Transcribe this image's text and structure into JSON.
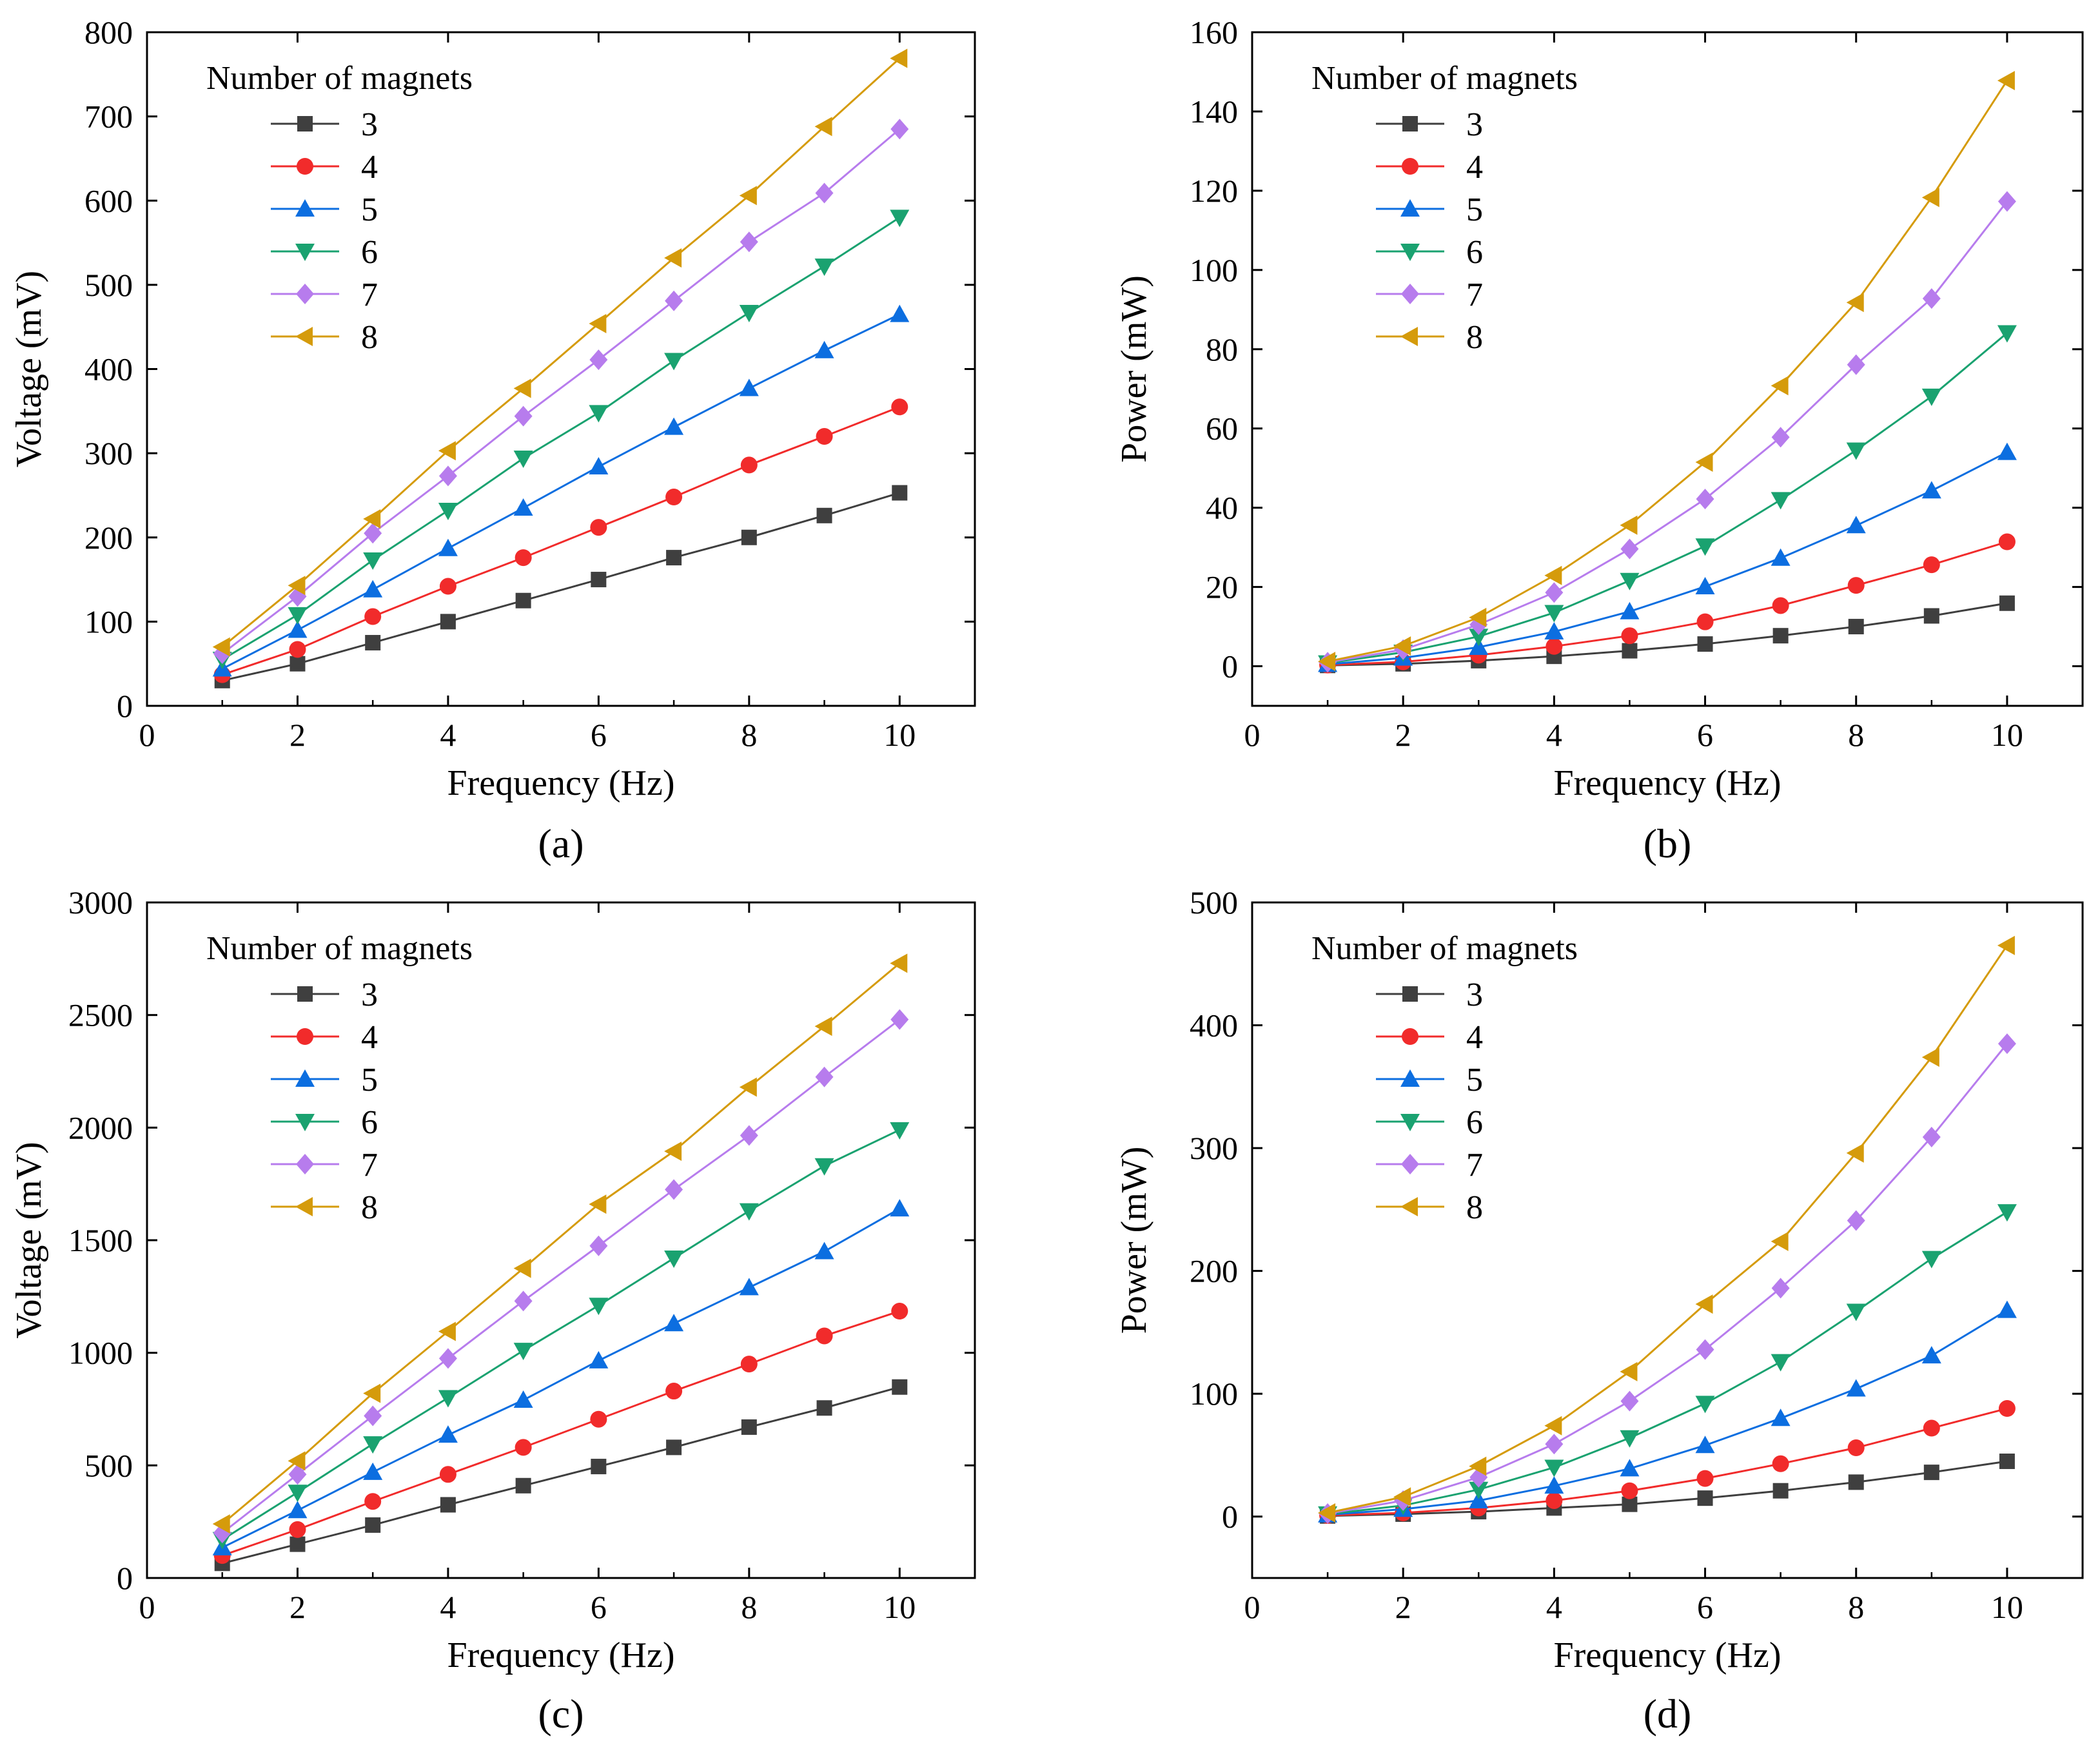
{
  "chart_data": [
    {
      "type": "line",
      "caption": "(a)",
      "xlabel": "Frequency (Hz)",
      "ylabel": "Voltage (mV)",
      "xlim": [
        0,
        11
      ],
      "ylim": [
        0,
        800
      ],
      "xticks": [
        0,
        2,
        4,
        6,
        8,
        10
      ],
      "yticks": [
        0,
        100,
        200,
        300,
        400,
        500,
        600,
        700,
        800
      ],
      "legend_title": "Number of magnets",
      "legend_position": "top-left",
      "x": [
        1,
        2,
        3,
        4,
        5,
        6,
        7,
        8,
        9,
        10
      ],
      "series": [
        {
          "name": "3",
          "color": "#3f3f3f",
          "marker": "square",
          "values": [
            30,
            50,
            75,
            100,
            125,
            150,
            176,
            200,
            226,
            253
          ]
        },
        {
          "name": "4",
          "color": "#f12b2b",
          "marker": "circle",
          "values": [
            37,
            67,
            106,
            142,
            176,
            212,
            248,
            286,
            320,
            355
          ]
        },
        {
          "name": "5",
          "color": "#0c6ee0",
          "marker": "triangle-up",
          "values": [
            44,
            90,
            138,
            187,
            235,
            284,
            331,
            377,
            422,
            465
          ]
        },
        {
          "name": "6",
          "color": "#1aa270",
          "marker": "triangle-down",
          "values": [
            55,
            108,
            173,
            232,
            294,
            348,
            410,
            467,
            522,
            580
          ]
        },
        {
          "name": "7",
          "color": "#b77ced",
          "marker": "diamond",
          "values": [
            62,
            130,
            205,
            273,
            344,
            411,
            481,
            551,
            609,
            685
          ]
        },
        {
          "name": "8",
          "color": "#d59b0b",
          "marker": "triangle-left",
          "values": [
            70,
            143,
            222,
            303,
            377,
            454,
            532,
            606,
            688,
            769
          ]
        }
      ]
    },
    {
      "type": "line",
      "caption": "(b)",
      "xlabel": "Frequency (Hz)",
      "ylabel": "Power (mW)",
      "xlim": [
        0,
        11
      ],
      "ylim": [
        -10,
        160
      ],
      "xticks": [
        0,
        2,
        4,
        6,
        8,
        10
      ],
      "yticks": [
        0,
        20,
        40,
        60,
        80,
        100,
        120,
        140,
        160
      ],
      "legend_title": "Number of magnets",
      "legend_position": "top-left",
      "x": [
        1,
        2,
        3,
        4,
        5,
        6,
        7,
        8,
        9,
        10
      ],
      "series": [
        {
          "name": "3",
          "color": "#3f3f3f",
          "marker": "square",
          "values": [
            0.2,
            0.6,
            1.4,
            2.5,
            3.9,
            5.6,
            7.7,
            10,
            12.7,
            15.9
          ]
        },
        {
          "name": "4",
          "color": "#f12b2b",
          "marker": "circle",
          "values": [
            0.3,
            1.1,
            2.8,
            5,
            7.7,
            11.2,
            15.3,
            20.4,
            25.6,
            31.4
          ]
        },
        {
          "name": "5",
          "color": "#0c6ee0",
          "marker": "triangle-up",
          "values": [
            0.5,
            2.1,
            4.8,
            8.7,
            13.8,
            20.1,
            27.3,
            35.5,
            44.3,
            54
          ]
        },
        {
          "name": "6",
          "color": "#1aa270",
          "marker": "triangle-down",
          "values": [
            0.8,
            3.5,
            7.5,
            13.5,
            21.6,
            30.3,
            42,
            54.5,
            68.1,
            84.1
          ]
        },
        {
          "name": "7",
          "color": "#b77ced",
          "marker": "diamond",
          "values": [
            1,
            4.2,
            10.5,
            18.6,
            29.6,
            42.2,
            57.8,
            76.1,
            92.8,
            117.3
          ]
        },
        {
          "name": "8",
          "color": "#d59b0b",
          "marker": "triangle-left",
          "values": [
            1.2,
            5.1,
            12.3,
            22.9,
            35.6,
            51.5,
            70.8,
            91.8,
            118.3,
            147.8
          ]
        }
      ]
    },
    {
      "type": "line",
      "caption": "(c)",
      "xlabel": "Frequency (Hz)",
      "ylabel": "Voltage (mV)",
      "xlim": [
        0,
        11
      ],
      "ylim": [
        0,
        3000
      ],
      "xticks": [
        0,
        2,
        4,
        6,
        8,
        10
      ],
      "yticks": [
        0,
        500,
        1000,
        1500,
        2000,
        2500,
        3000
      ],
      "legend_title": "Number of magnets",
      "legend_position": "top-left",
      "x": [
        1,
        2,
        3,
        4,
        5,
        6,
        7,
        8,
        9,
        10
      ],
      "series": [
        {
          "name": "3",
          "color": "#3f3f3f",
          "marker": "square",
          "values": [
            65,
            150,
            235,
            325,
            410,
            495,
            580,
            670,
            755,
            848
          ]
        },
        {
          "name": "4",
          "color": "#f12b2b",
          "marker": "circle",
          "values": [
            100,
            215,
            340,
            460,
            580,
            705,
            830,
            950,
            1075,
            1185
          ]
        },
        {
          "name": "5",
          "color": "#0c6ee0",
          "marker": "triangle-up",
          "values": [
            135,
            300,
            470,
            635,
            790,
            965,
            1130,
            1290,
            1450,
            1640
          ]
        },
        {
          "name": "6",
          "color": "#1aa270",
          "marker": "triangle-down",
          "values": [
            170,
            380,
            595,
            800,
            1010,
            1210,
            1420,
            1630,
            1830,
            1990
          ]
        },
        {
          "name": "7",
          "color": "#b77ced",
          "marker": "diamond",
          "values": [
            200,
            460,
            720,
            975,
            1230,
            1475,
            1725,
            1965,
            2225,
            2480
          ]
        },
        {
          "name": "8",
          "color": "#d59b0b",
          "marker": "triangle-left",
          "values": [
            240,
            520,
            820,
            1095,
            1375,
            1660,
            1895,
            2180,
            2450,
            2730
          ]
        }
      ]
    },
    {
      "type": "line",
      "caption": "(d)",
      "xlabel": "Frequency (Hz)",
      "ylabel": "Power (mW)",
      "xlim": [
        0,
        11
      ],
      "ylim": [
        -50,
        500
      ],
      "xticks": [
        0,
        2,
        4,
        6,
        8,
        10
      ],
      "yticks": [
        0,
        100,
        200,
        300,
        400,
        500
      ],
      "legend_title": "Number of magnets",
      "legend_position": "top-left",
      "x": [
        1,
        2,
        3,
        4,
        5,
        6,
        7,
        8,
        9,
        10
      ],
      "series": [
        {
          "name": "3",
          "color": "#3f3f3f",
          "marker": "square",
          "values": [
            0.5,
            2,
            4,
            7,
            10,
            15,
            21,
            28,
            36,
            45
          ]
        },
        {
          "name": "4",
          "color": "#f12b2b",
          "marker": "circle",
          "values": [
            1,
            3,
            7,
            13,
            21,
            31,
            43,
            56,
            72,
            88
          ]
        },
        {
          "name": "5",
          "color": "#0c6ee0",
          "marker": "triangle-up",
          "values": [
            1.5,
            6,
            13,
            25,
            39,
            58,
            80,
            104,
            131,
            168
          ]
        },
        {
          "name": "6",
          "color": "#1aa270",
          "marker": "triangle-down",
          "values": [
            2,
            9,
            22,
            40,
            64,
            92,
            126,
            167,
            210,
            248
          ]
        },
        {
          "name": "7",
          "color": "#b77ced",
          "marker": "diamond",
          "values": [
            2.5,
            13,
            32,
            59,
            94,
            136,
            186,
            241,
            309,
            385
          ]
        },
        {
          "name": "8",
          "color": "#d59b0b",
          "marker": "triangle-left",
          "values": [
            3,
            16,
            41,
            74,
            118,
            173,
            224,
            296,
            374,
            465
          ]
        }
      ]
    }
  ]
}
